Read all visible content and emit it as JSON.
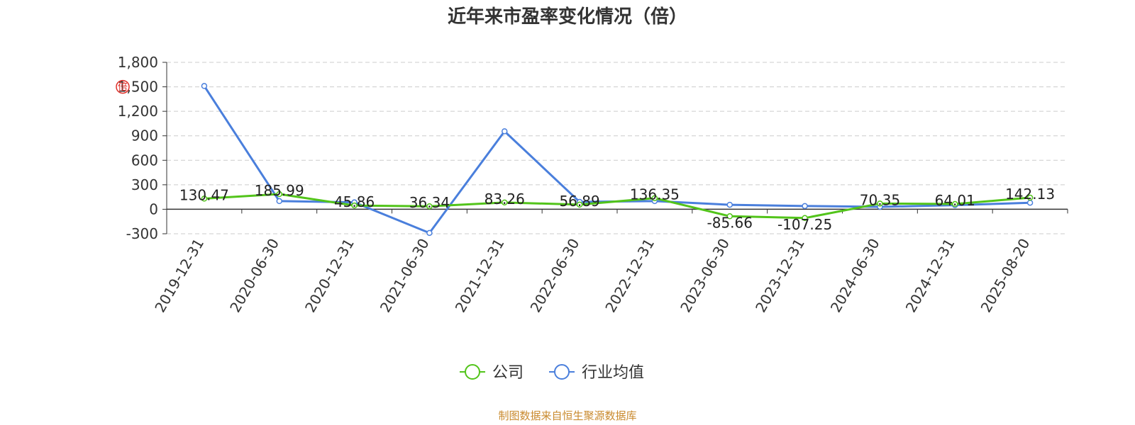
{
  "chart_data": {
    "type": "line",
    "title": "近年来市盈率变化情况（倍）",
    "unit_mark": "倍",
    "categories": [
      "2019-12-31",
      "2020-06-30",
      "2020-12-31",
      "2021-06-30",
      "2021-12-31",
      "2022-06-30",
      "2022-12-31",
      "2023-06-30",
      "2023-12-31",
      "2024-06-30",
      "2024-12-31",
      "2025-08-20"
    ],
    "series": [
      {
        "name": "公司",
        "color": "#52c41a",
        "values": [
          130.47,
          185.99,
          45.86,
          36.34,
          83.26,
          56.89,
          136.35,
          -85.66,
          -107.25,
          70.35,
          64.01,
          142.13
        ],
        "labels": [
          "130.47",
          "185.99",
          "45.86",
          "36.34",
          "83.26",
          "56.89",
          "136.35",
          "-85.66",
          "-107.25",
          "70.35",
          "64.01",
          "142.13"
        ]
      },
      {
        "name": "行业均值",
        "color": "#4a7fdc",
        "values": [
          1510,
          100,
          85,
          -290,
          955,
          90,
          100,
          55,
          40,
          30,
          50,
          80
        ]
      }
    ],
    "yticks": [
      -300,
      0,
      300,
      600,
      900,
      1200,
      1500,
      1800
    ],
    "ytick_labels": [
      "-300",
      "0",
      "300",
      "600",
      "900",
      "1,200",
      "1,500",
      "1,800"
    ],
    "ylim": [
      -300,
      1800
    ],
    "grid": true,
    "legend_position": "bottom"
  },
  "footer": {
    "source": "制图数据来自恒生聚源数据库"
  }
}
